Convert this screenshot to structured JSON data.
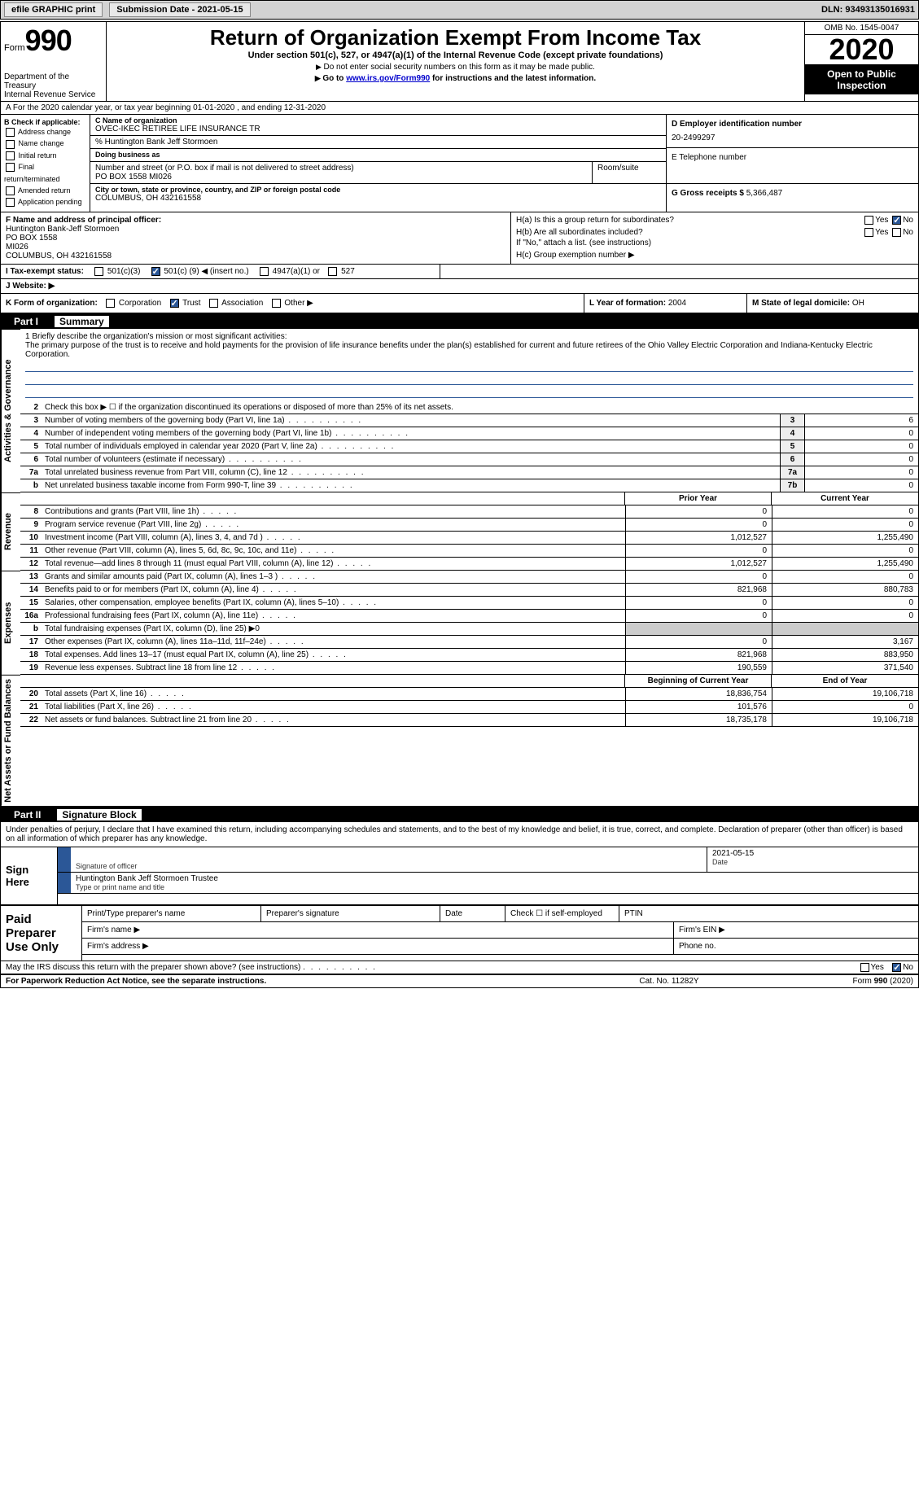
{
  "topbar": {
    "efile_label": "efile GRAPHIC print",
    "submission_label": "Submission Date - 2021-05-15",
    "dln_label": "DLN: 93493135016931"
  },
  "header": {
    "form_word": "Form",
    "form_number": "990",
    "dept1": "Department of the Treasury",
    "dept2": "Internal Revenue Service",
    "title": "Return of Organization Exempt From Income Tax",
    "subtitle": "Under section 501(c), 527, or 4947(a)(1) of the Internal Revenue Code (except private foundations)",
    "note1": "Do not enter social security numbers on this form as it may be made public.",
    "note2_pre": "Go to ",
    "note2_link": "www.irs.gov/Form990",
    "note2_post": " for instructions and the latest information.",
    "omb": "OMB No. 1545-0047",
    "year": "2020",
    "inspect1": "Open to Public",
    "inspect2": "Inspection"
  },
  "row_a": "A  For the 2020 calendar year, or tax year beginning 01-01-2020    , and ending 12-31-2020",
  "col_b": {
    "title": "B Check if applicable:",
    "opts": [
      "Address change",
      "Name change",
      "Initial return",
      "Final return/terminated",
      "Amended return",
      "Application pending"
    ]
  },
  "org": {
    "c_label": "C Name of organization",
    "name": "OVEC-IKEC RETIREE LIFE INSURANCE TR",
    "care_of": "% Huntington Bank Jeff Stormoen",
    "dba_label": "Doing business as",
    "addr_label": "Number and street (or P.O. box if mail is not delivered to street address)",
    "room_label": "Room/suite",
    "addr": "PO BOX 1558 MI026",
    "city_label": "City or town, state or province, country, and ZIP or foreign postal code",
    "city": "COLUMBUS, OH  432161558"
  },
  "right_col": {
    "d_label": "D Employer identification number",
    "ein": "20-2499297",
    "e_label": "E Telephone number",
    "g_label": "G Gross receipts $",
    "g_val": "5,366,487"
  },
  "f_block": {
    "label": "F  Name and address of principal officer:",
    "l1": "Huntington Bank-Jeff Stormoen",
    "l2": "PO BOX 1558",
    "l3": "MI026",
    "l4": "COLUMBUS, OH  432161558"
  },
  "h_block": {
    "ha": "H(a)  Is this a group return for subordinates?",
    "hb": "H(b)  Are all subordinates included?",
    "hb_note": "If \"No,\" attach a list. (see instructions)",
    "hc": "H(c)  Group exemption number ▶",
    "yes": "Yes",
    "no": "No"
  },
  "i_row": {
    "label": "I   Tax-exempt status:",
    "opt1": "501(c)(3)",
    "opt2_pre": "501(c) (",
    "opt2_num": "9",
    "opt2_post": ") ◀ (insert no.)",
    "opt3": "4947(a)(1) or",
    "opt4": "527"
  },
  "j_row": {
    "label": "J   Website: ▶"
  },
  "klm": {
    "k_label": "K Form of organization:",
    "k_opts": [
      "Corporation",
      "Trust",
      "Association",
      "Other ▶"
    ],
    "l_label": "L Year of formation:",
    "l_val": "2004",
    "m_label": "M State of legal domicile:",
    "m_val": "OH"
  },
  "part1": {
    "num": "Part I",
    "title": "Summary"
  },
  "mission": {
    "q1": "1  Briefly describe the organization's mission or most significant activities:",
    "text": "The primary purpose of the trust is to receive and hold payments for the provision of life insurance benefits under the plan(s) established for current and future retirees of the Ohio Valley Electric Corporation and Indiana-Kentucky Electric Corporation."
  },
  "vtabs": {
    "gov": "Activities & Governance",
    "rev": "Revenue",
    "exp": "Expenses",
    "net": "Net Assets or Fund Balances"
  },
  "lines_single": [
    {
      "n": "2",
      "d": "Check this box ▶ ☐ if the organization discontinued its operations or disposed of more than 25% of its net assets.",
      "boxed": false
    },
    {
      "n": "3",
      "d": "Number of voting members of the governing body (Part VI, line 1a)",
      "box": "3",
      "v": "6"
    },
    {
      "n": "4",
      "d": "Number of independent voting members of the governing body (Part VI, line 1b)",
      "box": "4",
      "v": "0"
    },
    {
      "n": "5",
      "d": "Total number of individuals employed in calendar year 2020 (Part V, line 2a)",
      "box": "5",
      "v": "0"
    },
    {
      "n": "6",
      "d": "Total number of volunteers (estimate if necessary)",
      "box": "6",
      "v": "0"
    },
    {
      "n": "7a",
      "d": "Total unrelated business revenue from Part VIII, column (C), line 12",
      "box": "7a",
      "v": "0"
    },
    {
      "n": "b",
      "d": "Net unrelated business taxable income from Form 990-T, line 39",
      "box": "7b",
      "v": "0"
    }
  ],
  "col_headers": {
    "prior": "Prior Year",
    "current": "Current Year"
  },
  "rev_lines": [
    {
      "n": "8",
      "d": "Contributions and grants (Part VIII, line 1h)",
      "c1": "0",
      "c2": "0"
    },
    {
      "n": "9",
      "d": "Program service revenue (Part VIII, line 2g)",
      "c1": "0",
      "c2": "0"
    },
    {
      "n": "10",
      "d": "Investment income (Part VIII, column (A), lines 3, 4, and 7d )",
      "c1": "1,012,527",
      "c2": "1,255,490"
    },
    {
      "n": "11",
      "d": "Other revenue (Part VIII, column (A), lines 5, 6d, 8c, 9c, 10c, and 11e)",
      "c1": "0",
      "c2": "0"
    },
    {
      "n": "12",
      "d": "Total revenue—add lines 8 through 11 (must equal Part VIII, column (A), line 12)",
      "c1": "1,012,527",
      "c2": "1,255,490"
    }
  ],
  "exp_lines": [
    {
      "n": "13",
      "d": "Grants and similar amounts paid (Part IX, column (A), lines 1–3 )",
      "c1": "0",
      "c2": "0"
    },
    {
      "n": "14",
      "d": "Benefits paid to or for members (Part IX, column (A), line 4)",
      "c1": "821,968",
      "c2": "880,783"
    },
    {
      "n": "15",
      "d": "Salaries, other compensation, employee benefits (Part IX, column (A), lines 5–10)",
      "c1": "0",
      "c2": "0"
    },
    {
      "n": "16a",
      "d": "Professional fundraising fees (Part IX, column (A), line 11e)",
      "c1": "0",
      "c2": "0"
    },
    {
      "n": "b",
      "d": "Total fundraising expenses (Part IX, column (D), line 25) ▶0",
      "c1": "",
      "c2": "",
      "noval": true
    },
    {
      "n": "17",
      "d": "Other expenses (Part IX, column (A), lines 11a–11d, 11f–24e)",
      "c1": "0",
      "c2": "3,167"
    },
    {
      "n": "18",
      "d": "Total expenses. Add lines 13–17 (must equal Part IX, column (A), line 25)",
      "c1": "821,968",
      "c2": "883,950"
    },
    {
      "n": "19",
      "d": "Revenue less expenses. Subtract line 18 from line 12",
      "c1": "190,559",
      "c2": "371,540"
    }
  ],
  "net_headers": {
    "beg": "Beginning of Current Year",
    "end": "End of Year"
  },
  "net_lines": [
    {
      "n": "20",
      "d": "Total assets (Part X, line 16)",
      "c1": "18,836,754",
      "c2": "19,106,718"
    },
    {
      "n": "21",
      "d": "Total liabilities (Part X, line 26)",
      "c1": "101,576",
      "c2": "0"
    },
    {
      "n": "22",
      "d": "Net assets or fund balances. Subtract line 21 from line 20",
      "c1": "18,735,178",
      "c2": "19,106,718"
    }
  ],
  "part2": {
    "num": "Part II",
    "title": "Signature Block"
  },
  "sig_text": "Under penalties of perjury, I declare that I have examined this return, including accompanying schedules and statements, and to the best of my knowledge and belief, it is true, correct, and complete. Declaration of preparer (other than officer) is based on all information of which preparer has any knowledge.",
  "sign": {
    "here": "Sign Here",
    "sig_of_officer": "Signature of officer",
    "date_label": "Date",
    "date": "2021-05-15",
    "name": "Huntington Bank Jeff Stormoen  Trustee",
    "name_label": "Type or print name and title"
  },
  "paid": {
    "title": "Paid Preparer Use Only",
    "h1": "Print/Type preparer's name",
    "h2": "Preparer's signature",
    "h3": "Date",
    "h4": "Check ☐ if self-employed",
    "h5": "PTIN",
    "firm_name": "Firm's name    ▶",
    "firm_ein": "Firm's EIN ▶",
    "firm_addr": "Firm's address ▶",
    "phone": "Phone no."
  },
  "discuss": {
    "text": "May the IRS discuss this return with the preparer shown above? (see instructions)",
    "yes": "Yes",
    "no": "No"
  },
  "footer": {
    "l": "For Paperwork Reduction Act Notice, see the separate instructions.",
    "c": "Cat. No. 11282Y",
    "r": "Form 990 (2020)"
  }
}
